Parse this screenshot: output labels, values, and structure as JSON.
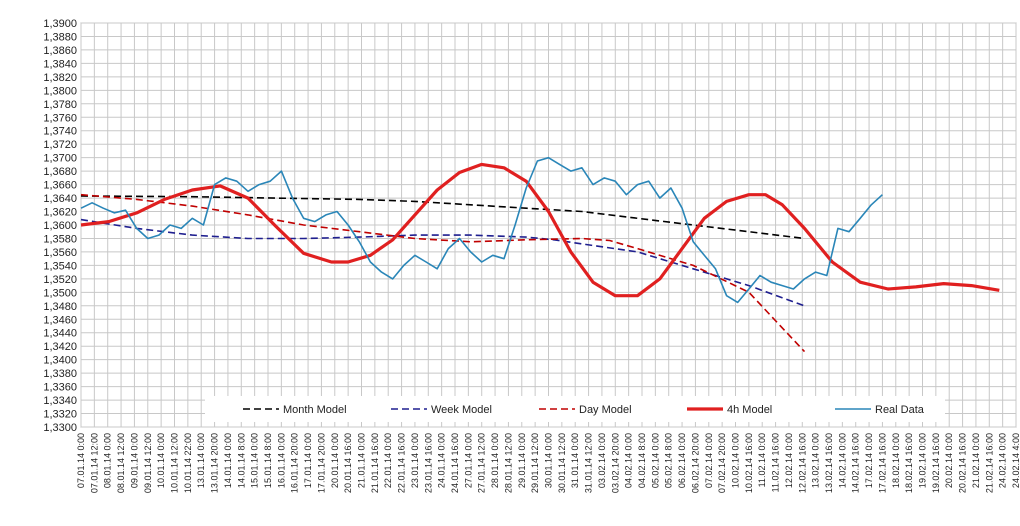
{
  "chart_data": {
    "type": "line",
    "title": "",
    "xlabel": "",
    "ylabel": "",
    "ylim": [
      1.33,
      1.39
    ],
    "ytick_step": 0.002,
    "y_tick_labels": [
      "1,3300",
      "1,3320",
      "1,3340",
      "1,3360",
      "1,3380",
      "1,3400",
      "1,3420",
      "1,3440",
      "1,3460",
      "1,3480",
      "1,3500",
      "1,3520",
      "1,3540",
      "1,3560",
      "1,3580",
      "1,3600",
      "1,3620",
      "1,3640",
      "1,3660",
      "1,3680",
      "1,3700",
      "1,3720",
      "1,3740",
      "1,3760",
      "1,3780",
      "1,3800",
      "1,3820",
      "1,3840",
      "1,3860",
      "1,3880",
      "1,3900"
    ],
    "x_tick_labels": [
      "07.01.14 0:00",
      "07.01.14 12:00",
      "08.01.14 0:00",
      "08.01.14 12:00",
      "09.01.14 0:00",
      "09.01.14 12:00",
      "10.01.14 0:00",
      "10.01.14 12:00",
      "10.01.14 22:00",
      "13.01.14 0:00",
      "13.01.14 20:00",
      "14.01.14 0:00",
      "14.01.14 8:00",
      "15.01.14 0:00",
      "15.01.14 8:00",
      "16.01.14 0:00",
      "16.01.14 20:00",
      "17.01.14 0:00",
      "17.01.14 20:00",
      "20.01.14 0:00",
      "20.01.14 16:00",
      "21.01.14 0:00",
      "21.01.14 16:00",
      "22.01.14 0:00",
      "22.01.14 16:00",
      "23.01.14 0:00",
      "23.01.14 16:00",
      "24.01.14 0:00",
      "24.01.14 16:00",
      "27.01.14 0:00",
      "27.01.14 12:00",
      "28.01.14 0:00",
      "28.01.14 12:00",
      "29.01.14 0:00",
      "29.01.14 12:00",
      "30.01.14 0:00",
      "30.01.14 12:00",
      "31.01.14 0:00",
      "31.01.14 12:00",
      "03.02.14 0:00",
      "03.02.14 20:00",
      "04.02.14 0:00",
      "04.02.14 8:00",
      "05.02.14 0:00",
      "05.02.14 8:00",
      "06.02.14 0:00",
      "06.02.14 20:00",
      "07.02.14 0:00",
      "07.02.14 20:00",
      "10.02.14 0:00",
      "10.02.14 16:00",
      "11.02.14 0:00",
      "11.02.14 16:00",
      "12.02.14 0:00",
      "12.02.14 16:00",
      "13.02.14 0:00",
      "13.02.14 16:00",
      "14.02.14 0:00",
      "14.02.14 16:00",
      "17.02.14 0:00",
      "17.02.14 16:00",
      "18.02.14 0:00",
      "18.02.14 16:00",
      "19.02.14 0:00",
      "19.02.14 16:00",
      "20.02.14 0:00",
      "20.02.14 16:00",
      "21.02.14 0:00",
      "21.02.14 16:00",
      "24.02.14 0:00",
      "24.02.14 4:00"
    ],
    "grid": true,
    "legend_position": "bottom-inside",
    "series": [
      {
        "name": "Month Model",
        "color": "#000000",
        "style": "dashed",
        "values": [
          [
            0,
            1.3643
          ],
          [
            20,
            1.3642
          ],
          [
            35,
            1.364
          ],
          [
            50,
            1.3638
          ],
          [
            60,
            1.3635
          ],
          [
            70,
            1.363
          ],
          [
            80,
            1.3625
          ],
          [
            90,
            1.362
          ],
          [
            100,
            1.361
          ],
          [
            110,
            1.36
          ],
          [
            120,
            1.359
          ],
          [
            130,
            1.358
          ]
        ]
      },
      {
        "name": "Week Model",
        "color": "#1f1f8f",
        "style": "dashed",
        "values": [
          [
            0,
            1.3608
          ],
          [
            10,
            1.3595
          ],
          [
            20,
            1.3585
          ],
          [
            30,
            1.358
          ],
          [
            40,
            1.358
          ],
          [
            50,
            1.3582
          ],
          [
            60,
            1.3585
          ],
          [
            70,
            1.3585
          ],
          [
            80,
            1.3582
          ],
          [
            85,
            1.3578
          ],
          [
            90,
            1.3572
          ],
          [
            100,
            1.356
          ],
          [
            110,
            1.3535
          ],
          [
            120,
            1.351
          ],
          [
            130,
            1.348
          ]
        ]
      },
      {
        "name": "Day Model",
        "color": "#c00000",
        "style": "dashed",
        "values": [
          [
            0,
            1.3645
          ],
          [
            10,
            1.3638
          ],
          [
            20,
            1.3628
          ],
          [
            30,
            1.3615
          ],
          [
            40,
            1.36
          ],
          [
            50,
            1.359
          ],
          [
            60,
            1.358
          ],
          [
            70,
            1.3575
          ],
          [
            80,
            1.3578
          ],
          [
            90,
            1.358
          ],
          [
            95,
            1.3577
          ],
          [
            100,
            1.3565
          ],
          [
            110,
            1.354
          ],
          [
            120,
            1.35
          ],
          [
            130,
            1.3412
          ]
        ]
      },
      {
        "name": "4h Model",
        "color": "#e02020",
        "style": "solid",
        "values": [
          [
            0,
            1.36
          ],
          [
            5,
            1.3605
          ],
          [
            10,
            1.3618
          ],
          [
            15,
            1.3638
          ],
          [
            20,
            1.3652
          ],
          [
            25,
            1.3658
          ],
          [
            30,
            1.364
          ],
          [
            35,
            1.3598
          ],
          [
            40,
            1.3558
          ],
          [
            45,
            1.3545
          ],
          [
            48,
            1.3545
          ],
          [
            52,
            1.3555
          ],
          [
            56,
            1.3578
          ],
          [
            60,
            1.3615
          ],
          [
            64,
            1.3652
          ],
          [
            68,
            1.3678
          ],
          [
            72,
            1.369
          ],
          [
            76,
            1.3685
          ],
          [
            80,
            1.3665
          ],
          [
            84,
            1.362
          ],
          [
            88,
            1.356
          ],
          [
            92,
            1.3515
          ],
          [
            96,
            1.3495
          ],
          [
            100,
            1.3495
          ],
          [
            104,
            1.352
          ],
          [
            108,
            1.3565
          ],
          [
            112,
            1.361
          ],
          [
            116,
            1.3635
          ],
          [
            120,
            1.3645
          ],
          [
            123,
            1.3645
          ],
          [
            126,
            1.363
          ],
          [
            130,
            1.3595
          ],
          [
            135,
            1.3545
          ],
          [
            140,
            1.3515
          ],
          [
            145,
            1.3505
          ],
          [
            150,
            1.3508
          ],
          [
            155,
            1.3513
          ],
          [
            160,
            1.351
          ],
          [
            165,
            1.3503
          ]
        ]
      },
      {
        "name": "Real Data",
        "color": "#2a86b8",
        "style": "solid",
        "values": [
          [
            0,
            1.3625
          ],
          [
            2,
            1.3633
          ],
          [
            4,
            1.3625
          ],
          [
            6,
            1.3618
          ],
          [
            8,
            1.3622
          ],
          [
            10,
            1.3595
          ],
          [
            12,
            1.358
          ],
          [
            14,
            1.3585
          ],
          [
            16,
            1.36
          ],
          [
            18,
            1.3595
          ],
          [
            20,
            1.361
          ],
          [
            22,
            1.36
          ],
          [
            24,
            1.366
          ],
          [
            26,
            1.367
          ],
          [
            28,
            1.3665
          ],
          [
            30,
            1.365
          ],
          [
            32,
            1.366
          ],
          [
            34,
            1.3665
          ],
          [
            36,
            1.368
          ],
          [
            38,
            1.364
          ],
          [
            40,
            1.361
          ],
          [
            42,
            1.3605
          ],
          [
            44,
            1.3615
          ],
          [
            46,
            1.362
          ],
          [
            48,
            1.36
          ],
          [
            50,
            1.3575
          ],
          [
            52,
            1.3545
          ],
          [
            54,
            1.353
          ],
          [
            56,
            1.352
          ],
          [
            58,
            1.354
          ],
          [
            60,
            1.3555
          ],
          [
            62,
            1.3545
          ],
          [
            64,
            1.3535
          ],
          [
            66,
            1.3565
          ],
          [
            68,
            1.358
          ],
          [
            70,
            1.356
          ],
          [
            72,
            1.3545
          ],
          [
            74,
            1.3555
          ],
          [
            76,
            1.355
          ],
          [
            78,
            1.36
          ],
          [
            80,
            1.3655
          ],
          [
            82,
            1.3695
          ],
          [
            84,
            1.37
          ],
          [
            86,
            1.369
          ],
          [
            88,
            1.368
          ],
          [
            90,
            1.3685
          ],
          [
            92,
            1.366
          ],
          [
            94,
            1.367
          ],
          [
            96,
            1.3665
          ],
          [
            98,
            1.3645
          ],
          [
            100,
            1.366
          ],
          [
            102,
            1.3665
          ],
          [
            104,
            1.364
          ],
          [
            106,
            1.3655
          ],
          [
            108,
            1.3625
          ],
          [
            110,
            1.3575
          ],
          [
            112,
            1.3555
          ],
          [
            114,
            1.3535
          ],
          [
            116,
            1.3495
          ],
          [
            118,
            1.3485
          ],
          [
            120,
            1.3505
          ],
          [
            122,
            1.3525
          ],
          [
            124,
            1.3515
          ],
          [
            126,
            1.351
          ],
          [
            128,
            1.3505
          ],
          [
            130,
            1.352
          ],
          [
            132,
            1.353
          ],
          [
            134,
            1.3525
          ],
          [
            136,
            1.3595
          ],
          [
            138,
            1.359
          ],
          [
            140,
            1.361
          ],
          [
            142,
            1.363
          ],
          [
            144,
            1.3645
          ]
        ]
      }
    ]
  }
}
